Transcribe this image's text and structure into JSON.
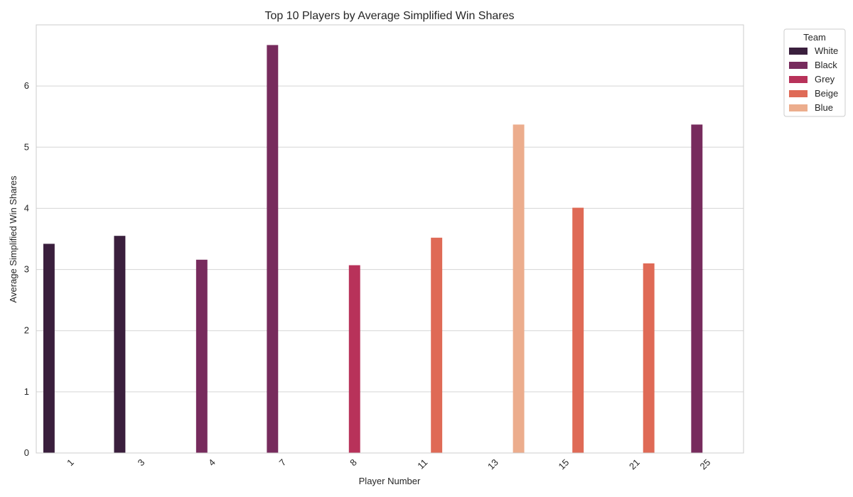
{
  "chart_data": {
    "type": "bar",
    "title": "Top 10 Players by Average Simplified Win Shares",
    "xlabel": "Player Number",
    "ylabel": "Average Simplified Win Shares",
    "categories": [
      "1",
      "3",
      "4",
      "7",
      "8",
      "11",
      "13",
      "15",
      "21",
      "25"
    ],
    "ylim": [
      0,
      7
    ],
    "yticks": [
      0,
      1,
      2,
      3,
      4,
      5,
      6
    ],
    "grid": true,
    "legend": {
      "title": "Team",
      "placement": "outside-top-right"
    },
    "series": [
      {
        "name": "White",
        "color": "#3a1f3d",
        "values": [
          3.42,
          3.55,
          null,
          null,
          null,
          null,
          null,
          null,
          null,
          null
        ]
      },
      {
        "name": "Black",
        "color": "#772b5d",
        "values": [
          null,
          null,
          3.16,
          6.67,
          null,
          null,
          null,
          null,
          null,
          5.37
        ]
      },
      {
        "name": "Grey",
        "color": "#b8325a",
        "values": [
          null,
          null,
          null,
          null,
          3.07,
          null,
          null,
          null,
          null,
          null
        ]
      },
      {
        "name": "Beige",
        "color": "#df6a56",
        "values": [
          null,
          null,
          null,
          null,
          null,
          3.52,
          null,
          4.01,
          3.1,
          null
        ]
      },
      {
        "name": "Blue",
        "color": "#ecad8d",
        "values": [
          null,
          null,
          null,
          null,
          null,
          null,
          5.37,
          null,
          null,
          null
        ]
      }
    ]
  }
}
